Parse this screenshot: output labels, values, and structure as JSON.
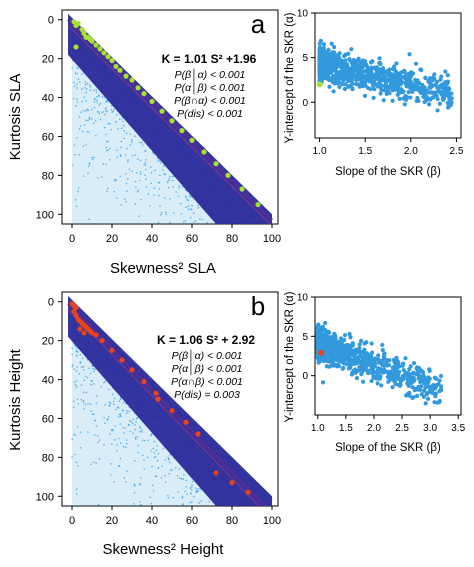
{
  "chart_data": [
    {
      "type": "scatter",
      "panel": "a",
      "xlabel": "Skewness² SLA",
      "ylabel": "Kurtosis SLA",
      "xlim": [
        -5,
        103
      ],
      "ylim": [
        -5,
        105
      ],
      "y_axis_inverted": true,
      "xticks": [
        "0",
        "20",
        "40",
        "60",
        "80",
        "100"
      ],
      "yticks": [
        "0",
        "20",
        "40",
        "60",
        "80",
        "100"
      ],
      "equation": "K = 1.01 S² +1.96",
      "annotations": [
        "P(β│α) < 0.001",
        "P(α│β) < 0.001",
        "P(β∩α) < 0.001",
        "P(dis) < 0.001"
      ],
      "fit": {
        "slope": 1.01,
        "intercept": 1.96
      },
      "highlight_color": "#a6e22e",
      "highlight_points": [
        [
          1,
          1
        ],
        [
          2,
          3
        ],
        [
          3,
          2
        ],
        [
          5,
          5
        ],
        [
          6,
          7
        ],
        [
          7,
          9
        ],
        [
          8,
          9
        ],
        [
          9,
          10
        ],
        [
          10,
          11
        ],
        [
          12,
          13
        ],
        [
          14,
          15
        ],
        [
          16,
          17
        ],
        [
          18,
          19
        ],
        [
          20,
          21
        ],
        [
          22,
          24
        ],
        [
          24,
          26
        ],
        [
          27,
          29
        ],
        [
          2,
          14
        ],
        [
          30,
          31
        ],
        [
          33,
          35
        ],
        [
          36,
          38
        ],
        [
          40,
          42
        ],
        [
          45,
          47
        ],
        [
          50,
          52
        ],
        [
          55,
          57
        ],
        [
          60,
          62
        ],
        [
          66,
          68
        ],
        [
          72,
          74
        ],
        [
          78,
          80
        ],
        [
          85,
          87
        ],
        [
          93,
          95
        ]
      ],
      "grid": false
    },
    {
      "type": "scatter",
      "panel": "a-inset",
      "xlabel": "Slope of the SKR (β)",
      "ylabel": "Y-intercept of the SKR (α)",
      "xlim": [
        0.95,
        2.55
      ],
      "ylim": [
        -4,
        10
      ],
      "xticks": [
        "1.0",
        "1.5",
        "2.0",
        "2.5"
      ],
      "yticks": [
        "0",
        "5",
        "10"
      ],
      "highlight_point": [
        1.0,
        2.0
      ],
      "highlight_color": "#a6e22e",
      "grid": false
    },
    {
      "type": "scatter",
      "panel": "b",
      "xlabel": "Skewness² Height",
      "ylabel": "Kurtosis Height",
      "xlim": [
        -5,
        103
      ],
      "ylim": [
        -5,
        105
      ],
      "y_axis_inverted": true,
      "xticks": [
        "0",
        "20",
        "40",
        "60",
        "80",
        "100"
      ],
      "yticks": [
        "0",
        "20",
        "40",
        "60",
        "80",
        "100"
      ],
      "equation": "K = 1.06 S² + 2.92",
      "annotations": [
        "P(β│α) < 0.001",
        "P(α│β) < 0.001",
        "P(α∩β) < 0.001",
        "P(dis) = 0.003"
      ],
      "fit": {
        "slope": 1.06,
        "intercept": 2.92
      },
      "highlight_color": "#e8431a",
      "highlight_points": [
        [
          0,
          1
        ],
        [
          1,
          2
        ],
        [
          2,
          3
        ],
        [
          1,
          5
        ],
        [
          2,
          7
        ],
        [
          3,
          9
        ],
        [
          4,
          10
        ],
        [
          5,
          11
        ],
        [
          6,
          12
        ],
        [
          7,
          13
        ],
        [
          8,
          14
        ],
        [
          9,
          15
        ],
        [
          10,
          16
        ],
        [
          12,
          17
        ],
        [
          4,
          14
        ],
        [
          6,
          16
        ],
        [
          15,
          20
        ],
        [
          20,
          25
        ],
        [
          25,
          30
        ],
        [
          30,
          35
        ],
        [
          36,
          41
        ],
        [
          42,
          47
        ],
        [
          43,
          50
        ],
        [
          50,
          56
        ],
        [
          57,
          62
        ],
        [
          63,
          68
        ],
        [
          72,
          88
        ],
        [
          80,
          93
        ],
        [
          88,
          98
        ]
      ],
      "grid": false
    },
    {
      "type": "scatter",
      "panel": "b-inset",
      "xlabel": "Slope of the SKR (β)",
      "ylabel": "Y-intercept of the SKR (α)",
      "xlim": [
        0.95,
        3.55
      ],
      "ylim": [
        -5,
        10
      ],
      "xticks": [
        "1.0",
        "1.5",
        "2.0",
        "2.5",
        "3.0",
        "3.5"
      ],
      "yticks": [
        "0",
        "5",
        "10"
      ],
      "highlight_point": [
        1.06,
        2.92
      ],
      "highlight_color": "#e8431a",
      "grid": false
    }
  ],
  "labels": {
    "panel_a": "a",
    "panel_b": "b"
  },
  "colors": {
    "cloud_light": "#2f9be0",
    "cloud_dark": "#2a2a9a",
    "fit_line": "#6a2a8a"
  }
}
